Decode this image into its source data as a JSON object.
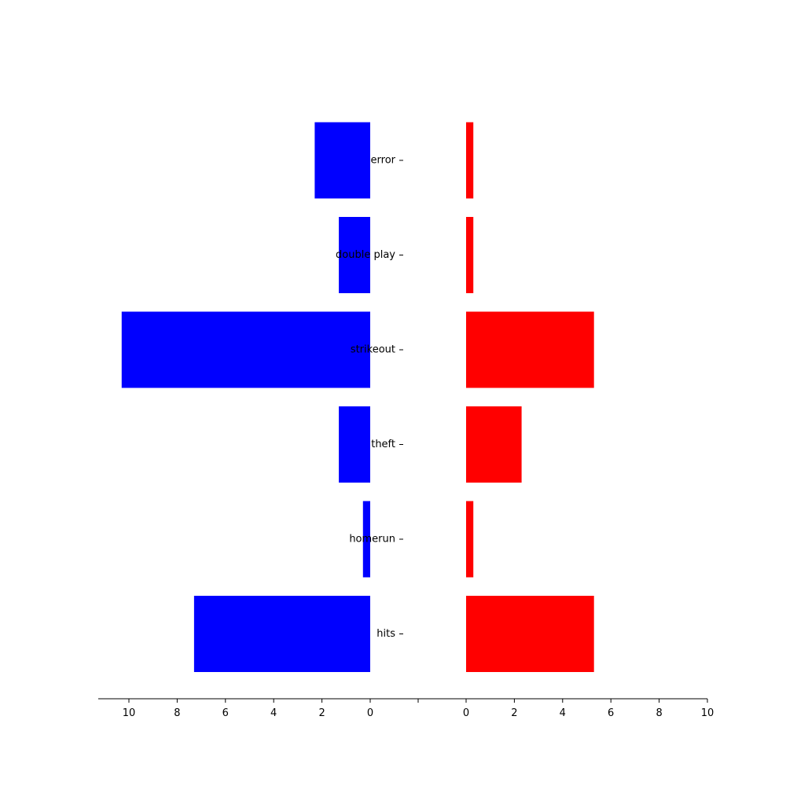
{
  "chart_data": {
    "type": "bar",
    "orientation": "horizontal",
    "layout": "back-to-back",
    "categories": [
      "hits",
      "homerun",
      "theft",
      "strikeout",
      "double play",
      "error"
    ],
    "series": [
      {
        "values": [
          7.3,
          0.3,
          1.3,
          10.3,
          1.3,
          2.3
        ],
        "color": "#0000ff",
        "direction": "left"
      },
      {
        "values": [
          5.3,
          0.3,
          2.3,
          5.3,
          0.3,
          0.3
        ],
        "color": "#ff0000",
        "direction": "right"
      }
    ],
    "left_ticks": [
      10,
      8,
      6,
      4,
      2,
      0
    ],
    "right_ticks": [
      0,
      2,
      4,
      6,
      8,
      10
    ],
    "xlim": [
      0,
      10
    ],
    "title": "",
    "xlabel": "",
    "ylabel": "",
    "grid": false,
    "legend": "none"
  }
}
